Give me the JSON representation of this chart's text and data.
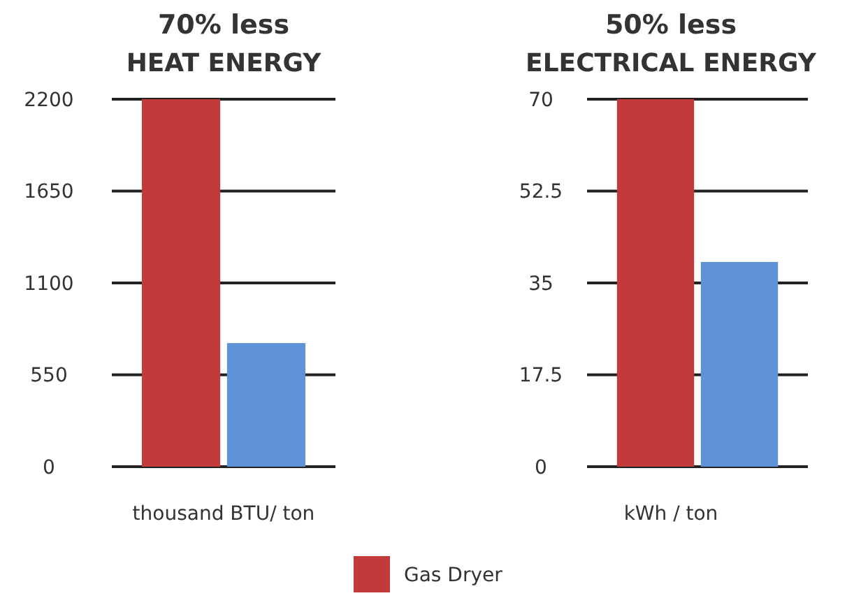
{
  "chart_data": [
    {
      "type": "bar",
      "title": "70% less",
      "subtitle": "HEAT ENERGY",
      "xlabel": "thousand BTU/ ton",
      "categories": [
        null
      ],
      "series": [
        {
          "name": "Gas Dryer",
          "color": "#c23b3a",
          "values": [
            2200
          ]
        },
        {
          "color": "#5f93d8",
          "values": [
            740
          ]
        }
      ],
      "ylim": [
        0,
        2200
      ],
      "yticks": [
        0,
        550,
        1100,
        1650,
        2200
      ],
      "grid": "y",
      "legend": "bottom"
    },
    {
      "type": "bar",
      "title": "50% less",
      "subtitle": "ELECTRICAL ENERGY",
      "xlabel": "kWh / ton",
      "categories": [
        null
      ],
      "series": [
        {
          "name": "Gas Dryer",
          "color": "#c23b3a",
          "values": [
            70
          ]
        },
        {
          "color": "#5f93d8",
          "values": [
            39
          ]
        }
      ],
      "ylim": [
        0,
        70
      ],
      "yticks": [
        0,
        17.5,
        35,
        52.5,
        70
      ],
      "grid": "y"
    }
  ]
}
